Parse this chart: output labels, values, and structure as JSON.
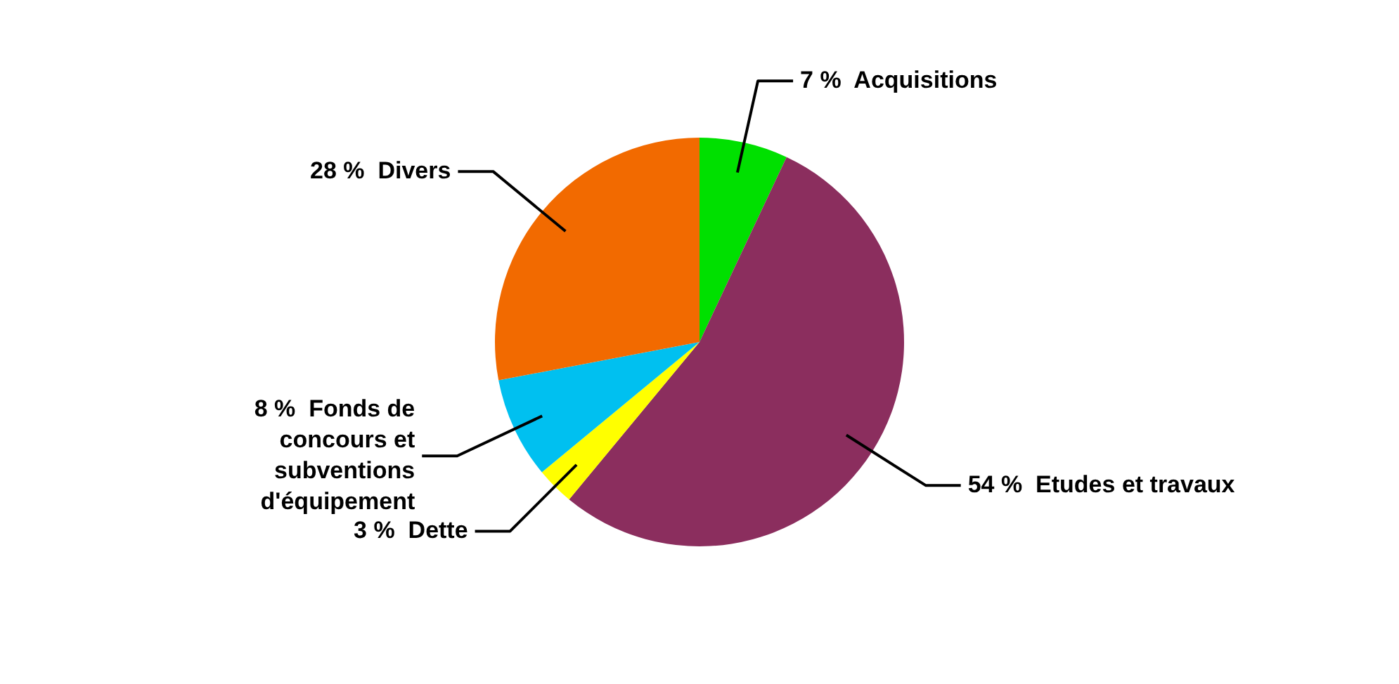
{
  "chart_data": {
    "type": "pie",
    "categories": [
      "Acquisitions",
      "Etudes et travaux",
      "Dette",
      "Fonds de concours et subventions d'équipement",
      "Divers"
    ],
    "values": [
      7,
      54,
      3,
      8,
      28
    ],
    "colors": [
      "#00e000",
      "#8b2e5e",
      "#ffff00",
      "#00c0f0",
      "#f26a00"
    ],
    "value_labels": [
      "7 %",
      "54 %",
      "3 %",
      "8 %",
      "28 %"
    ]
  }
}
